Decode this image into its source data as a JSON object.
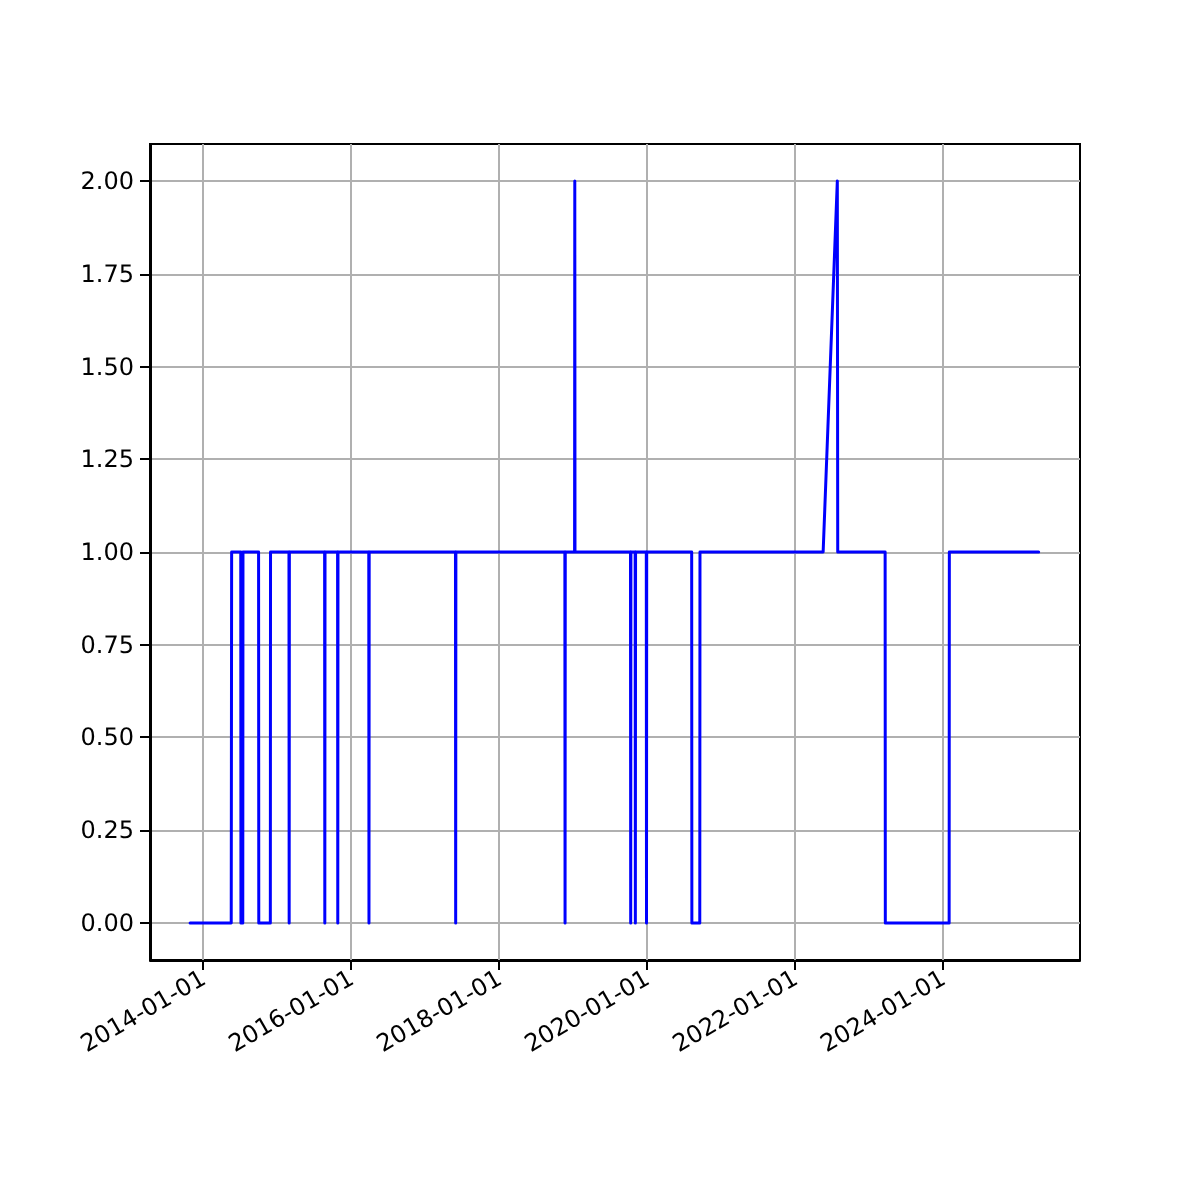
{
  "chart_data": {
    "type": "line",
    "marker": "none",
    "line_style": "solid",
    "grid": true,
    "x": [
      "2013-10-27",
      "2014-05-18",
      "2014-05-20",
      "2014-07-04",
      "2014-07-05",
      "2014-07-14",
      "2014-07-15",
      "2014-09-30",
      "2014-10-01",
      "2014-11-27",
      "2014-11-28",
      "2015-02-27",
      "2015-02-28",
      "2015-03-01",
      "2015-08-22",
      "2015-08-23",
      "2015-08-24",
      "2015-10-25",
      "2015-10-26",
      "2015-10-27",
      "2016-03-27",
      "2016-03-28",
      "2016-03-29",
      "2017-05-29",
      "2017-05-30",
      "2017-05-31",
      "2018-11-20",
      "2018-11-21",
      "2018-11-22",
      "2019-01-07",
      "2019-01-08",
      "2019-01-09",
      "2019-10-10",
      "2019-10-11",
      "2019-10-12",
      "2019-11-02",
      "2019-11-03",
      "2019-11-04",
      "2019-12-27",
      "2019-12-28",
      "2019-12-29",
      "2020-08-07",
      "2020-08-08",
      "2020-09-16",
      "2020-09-17",
      "2022-05-18",
      "2022-07-27",
      "2022-07-29",
      "2023-03-20",
      "2023-03-21",
      "2024-01-30",
      "2024-01-31",
      "2025-04-16"
    ],
    "series": [
      {
        "color": "#0000ff",
        "values": [
          0,
          0,
          1,
          1,
          0,
          0,
          1,
          1,
          0,
          0,
          1,
          1,
          0,
          1,
          1,
          0,
          1,
          1,
          0,
          1,
          1,
          0,
          1,
          1,
          0,
          1,
          1,
          0,
          1,
          1,
          2,
          1,
          1,
          0,
          1,
          1,
          0,
          1,
          1,
          0,
          1,
          1,
          0,
          0,
          1,
          1,
          2,
          1,
          1,
          0,
          0,
          1,
          1
        ]
      }
    ],
    "xlim": [
      "2013-04-12",
      "2025-11-06"
    ],
    "xticks": [
      "2014-01-01",
      "2016-01-01",
      "2018-01-01",
      "2020-01-01",
      "2022-01-01",
      "2024-01-01"
    ],
    "ylim": [
      -0.1,
      2.1
    ],
    "yticks": [
      {
        "value": 0,
        "label": "0.00"
      },
      {
        "value": 0.25,
        "label": "0.25"
      },
      {
        "value": 0.5,
        "label": "0.50"
      },
      {
        "value": 0.75,
        "label": "0.75"
      },
      {
        "value": 1,
        "label": "1.00"
      },
      {
        "value": 1.25,
        "label": "1.25"
      },
      {
        "value": 1.5,
        "label": "1.50"
      },
      {
        "value": 1.75,
        "label": "1.75"
      },
      {
        "value": 2,
        "label": "2.00"
      }
    ]
  }
}
